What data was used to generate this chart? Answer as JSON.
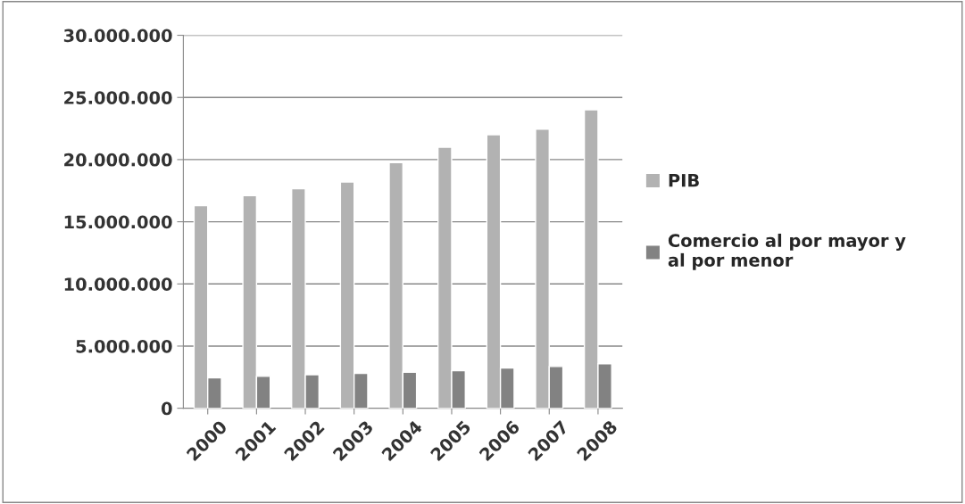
{
  "chart_data": {
    "type": "bar",
    "categories": [
      "2000",
      "2001",
      "2002",
      "2003",
      "2004",
      "2005",
      "2006",
      "2007",
      "2008"
    ],
    "series": [
      {
        "name": "PIB",
        "color": "#b2b2b2",
        "values": [
          16300000,
          17100000,
          17650000,
          18200000,
          19750000,
          21000000,
          22000000,
          22450000,
          24000000
        ]
      },
      {
        "name": "Comercio al por mayor y al por menor",
        "color": "#828282",
        "values": [
          2450000,
          2570000,
          2690000,
          2810000,
          2900000,
          3020000,
          3240000,
          3360000,
          3580000
        ]
      }
    ],
    "ylim": [
      0,
      30000000
    ],
    "yticks": [
      {
        "value": 0,
        "label": "0"
      },
      {
        "value": 5000000,
        "label": "5.000.000"
      },
      {
        "value": 10000000,
        "label": "10.000.000"
      },
      {
        "value": 15000000,
        "label": "15.000.000"
      },
      {
        "value": 20000000,
        "label": "20.000.000"
      },
      {
        "value": 25000000,
        "label": "25.000.000"
      },
      {
        "value": 30000000,
        "label": "30.000.000"
      }
    ],
    "grid": "y",
    "legend": "right"
  }
}
